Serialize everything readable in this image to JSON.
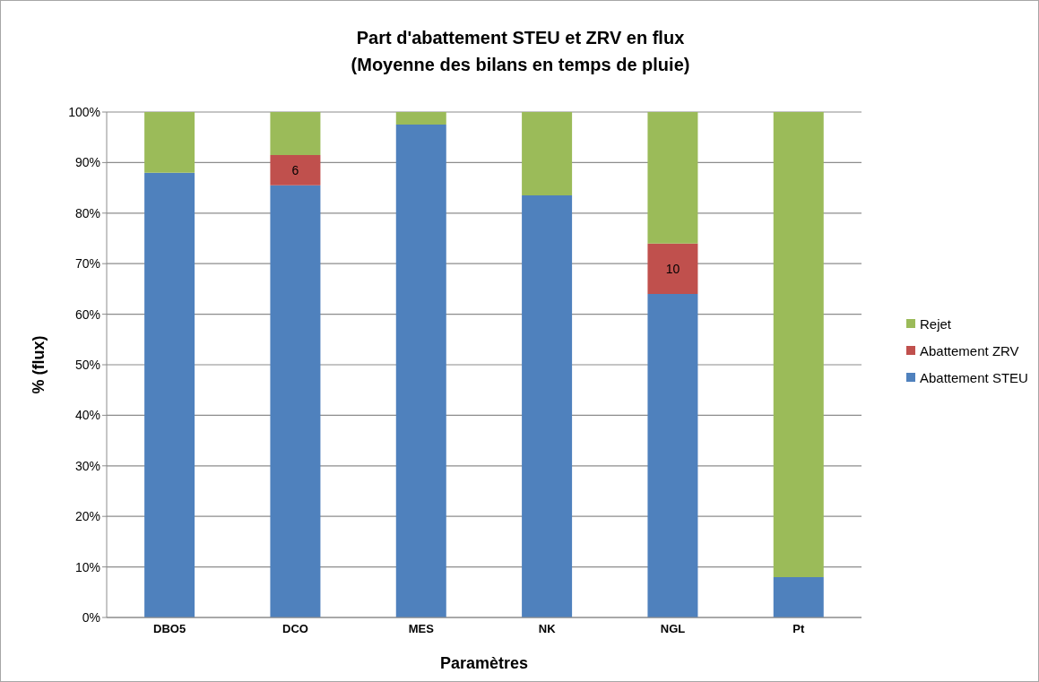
{
  "chart_data": {
    "type": "bar",
    "title": "Part d'abattement STEU et ZRV en flux",
    "subtitle": "(Moyenne des bilans en temps de pluie)",
    "xlabel": "Paramètres",
    "ylabel": "% (flux)",
    "categories": [
      "DBO5",
      "DCO",
      "MES",
      "NK",
      "NGL",
      "Pt"
    ],
    "series": [
      {
        "name": "Abattement STEU",
        "color": "#4f81bd",
        "values": [
          88,
          85.5,
          97.5,
          83.5,
          64,
          8
        ]
      },
      {
        "name": "Abattement ZRV",
        "color": "#c0504d",
        "values": [
          null,
          6,
          null,
          null,
          10,
          null
        ],
        "value_labels": [
          null,
          "6",
          null,
          null,
          "10",
          null
        ]
      },
      {
        "name": "Rejet",
        "color": "#9bbb59",
        "values": [
          12,
          8.5,
          2.5,
          16.5,
          26,
          92
        ]
      }
    ],
    "stacked": true,
    "ylim": [
      0,
      100
    ],
    "yticks": [
      {
        "value": 0,
        "label": "0%"
      },
      {
        "value": 10,
        "label": "10%"
      },
      {
        "value": 20,
        "label": "20%"
      },
      {
        "value": 30,
        "label": "30%"
      },
      {
        "value": 40,
        "label": "40%"
      },
      {
        "value": 50,
        "label": "50%"
      },
      {
        "value": 60,
        "label": "60%"
      },
      {
        "value": 70,
        "label": "70%"
      },
      {
        "value": 80,
        "label": "80%"
      },
      {
        "value": 90,
        "label": "90%"
      },
      {
        "value": 100,
        "label": "100%"
      }
    ],
    "grid": "y",
    "legend": "right"
  }
}
